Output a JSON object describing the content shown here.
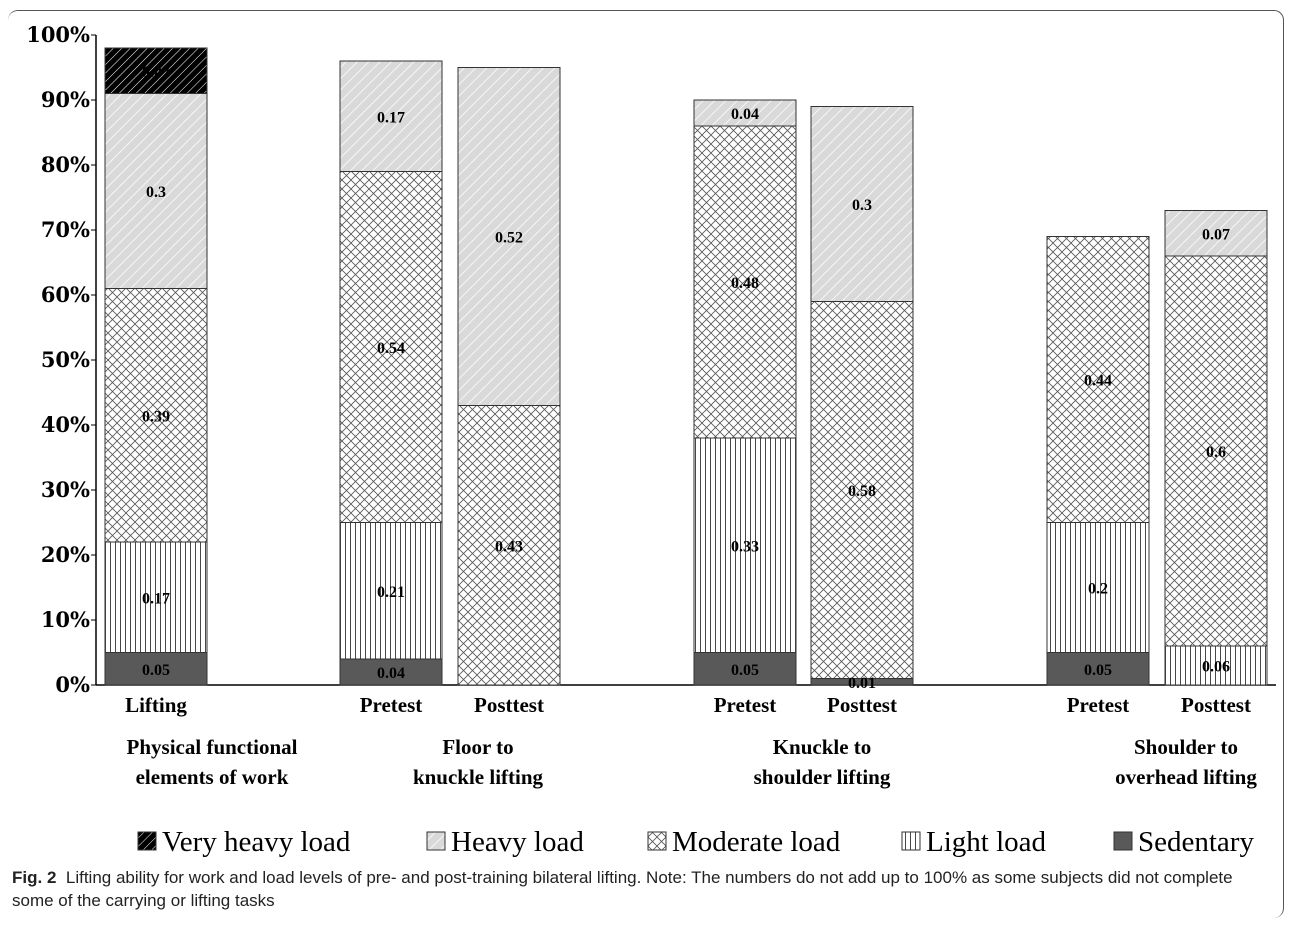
{
  "chart_data": {
    "type": "bar",
    "stacked": true,
    "y_tick_labels": [
      "0%",
      "10%",
      "20%",
      "30%",
      "40%",
      "50%",
      "60%",
      "70%",
      "80%",
      "90%",
      "100%"
    ],
    "ylim": [
      0,
      1
    ],
    "bars": [
      {
        "label": "Lifting",
        "segments": [
          0.05,
          0.17,
          0.39,
          0.3,
          0.07
        ],
        "labels": [
          "0.05",
          "0.17",
          "0.39",
          "0.3",
          "0.07"
        ]
      },
      {
        "label": "Pretest",
        "segments": [
          0.04,
          0.21,
          0.54,
          0.17,
          0
        ],
        "labels": [
          "0.04",
          "0.21",
          "0.54",
          "0.17",
          ""
        ]
      },
      {
        "label": "Posttest",
        "segments": [
          0,
          0,
          0.43,
          0.52,
          0
        ],
        "labels": [
          "",
          "",
          "0.43",
          "0.52",
          ""
        ]
      },
      {
        "label": "Pretest",
        "segments": [
          0.05,
          0.33,
          0.48,
          0.04,
          0
        ],
        "labels": [
          "0.05",
          "0.33",
          "0.48",
          "0.04",
          ""
        ]
      },
      {
        "label": "Posttest",
        "segments": [
          0.01,
          0,
          0.58,
          0.3,
          0
        ],
        "labels": [
          "0.01",
          "",
          "0.58",
          "0.3",
          ""
        ]
      },
      {
        "label": "Pretest",
        "segments": [
          0.05,
          0.2,
          0.44,
          0,
          0
        ],
        "labels": [
          "0.05",
          "0.2",
          "0.44",
          "",
          ""
        ]
      },
      {
        "label": "Posttest",
        "segments": [
          0,
          0.06,
          0.6,
          0.07,
          0
        ],
        "labels": [
          "",
          "0.06",
          "0.6",
          "0.07",
          ""
        ]
      }
    ],
    "groups": [
      {
        "lines": [
          "Physical functional",
          "elements of work"
        ]
      },
      {
        "lines": [
          "Floor to",
          "knuckle lifting"
        ]
      },
      {
        "lines": [
          "Knuckle to",
          "shoulder lifting"
        ]
      },
      {
        "lines": [
          "Shoulder to",
          "overhead lifting"
        ]
      }
    ],
    "series_order": [
      "Sedentary",
      "Light load",
      "Moderate load",
      "Heavy load",
      "Very heavy load"
    ],
    "legend": [
      {
        "name": "Very heavy load",
        "pattern": "very-heavy"
      },
      {
        "name": "Heavy load",
        "pattern": "heavy"
      },
      {
        "name": "Moderate load",
        "pattern": "moderate"
      },
      {
        "name": "Light load",
        "pattern": "light"
      },
      {
        "name": "Sedentary",
        "pattern": "sedentary"
      }
    ],
    "legend_position": "bottom",
    "grid": false
  },
  "caption": {
    "label": "Fig. 2",
    "text": "Lifting ability for work and load levels of pre- and post-training bilateral lifting. Note: The numbers do not add up to 100% as some subjects did not complete some of the carrying or lifting tasks"
  }
}
